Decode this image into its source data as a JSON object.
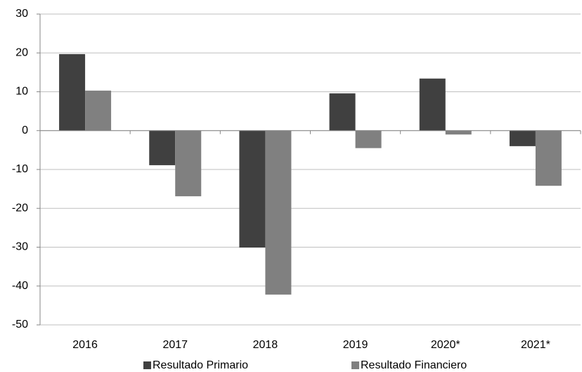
{
  "chart_data": {
    "type": "bar",
    "categories": [
      "2016",
      "2017",
      "2018",
      "2019",
      "2020*",
      "2021*"
    ],
    "series": [
      {
        "name": "Resultado Primario",
        "color": "#404040",
        "values": [
          19.7,
          -8.9,
          -30.1,
          9.6,
          13.4,
          -4.0
        ]
      },
      {
        "name": "Resultado Financiero",
        "color": "#808080",
        "values": [
          10.3,
          -16.9,
          -42.2,
          -4.5,
          -1.0,
          -14.2
        ]
      }
    ],
    "ylim": [
      -50,
      30
    ],
    "yticks": [
      -50,
      -40,
      -30,
      -20,
      -10,
      0,
      10,
      20,
      30
    ],
    "grid": true
  }
}
